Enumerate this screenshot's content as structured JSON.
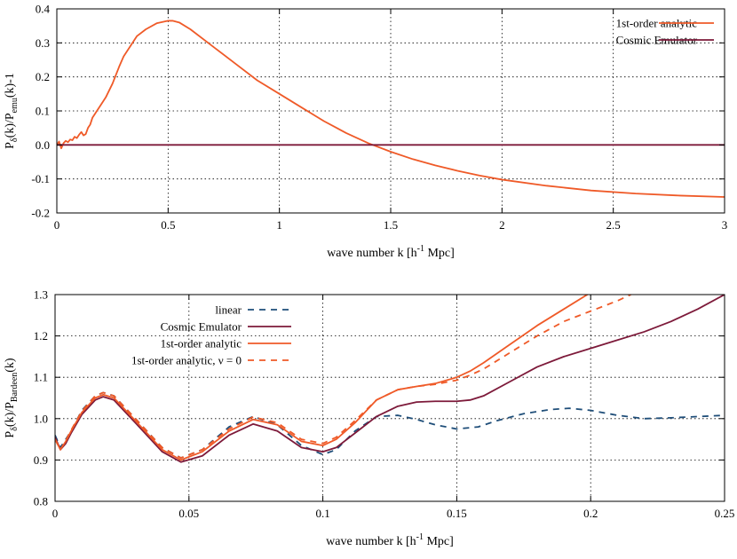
{
  "colors": {
    "analytic": "#ef5a28",
    "emulator": "#7d1a3a",
    "linear": "#1f4e79",
    "nu0": "#ef5a28"
  },
  "chart_data": [
    {
      "type": "line",
      "xlabel": "wave number k [h",
      "xlabel_sup": "-1",
      "xlabel_tail": " Mpc]",
      "ylabel_main": "P",
      "ylabel_sub1": "δ",
      "ylabel_mid": "(k)/P",
      "ylabel_sub2": "emu",
      "ylabel_tail": "(k)-1",
      "xlim": [
        0,
        3
      ],
      "ylim": [
        -0.2,
        0.4
      ],
      "xticks": [
        0,
        0.5,
        1,
        1.5,
        2,
        2.5,
        3
      ],
      "xtick_labels": [
        "0",
        "0.5",
        "1",
        "1.5",
        "2",
        "2.5",
        "3"
      ],
      "yticks": [
        -0.2,
        -0.1,
        0,
        0.1,
        0.2,
        0.3,
        0.4
      ],
      "ytick_labels": [
        "-0.2",
        "-0.1",
        "0.0",
        "0.1",
        "0.2",
        "0.3",
        "0.4"
      ],
      "grid": true,
      "legend": "top-right",
      "series": [
        {
          "name": "1st-order analytic",
          "color_key": "analytic",
          "dash": "solid",
          "x": [
            0.0,
            0.01,
            0.02,
            0.03,
            0.04,
            0.05,
            0.06,
            0.07,
            0.08,
            0.09,
            0.1,
            0.11,
            0.12,
            0.13,
            0.14,
            0.15,
            0.16,
            0.17,
            0.18,
            0.2,
            0.22,
            0.25,
            0.28,
            0.3,
            0.33,
            0.36,
            0.4,
            0.45,
            0.5,
            0.52,
            0.55,
            0.6,
            0.7,
            0.8,
            0.9,
            1.0,
            1.1,
            1.2,
            1.3,
            1.4,
            1.5,
            1.6,
            1.7,
            1.8,
            1.9,
            2.0,
            2.2,
            2.4,
            2.6,
            2.8,
            3.0
          ],
          "y": [
            0.0,
            0.01,
            -0.01,
            0.005,
            0.012,
            0.008,
            0.016,
            0.014,
            0.024,
            0.02,
            0.03,
            0.038,
            0.028,
            0.032,
            0.05,
            0.06,
            0.08,
            0.09,
            0.1,
            0.12,
            0.14,
            0.18,
            0.23,
            0.26,
            0.29,
            0.32,
            0.34,
            0.358,
            0.365,
            0.365,
            0.36,
            0.34,
            0.29,
            0.24,
            0.19,
            0.15,
            0.11,
            0.07,
            0.035,
            0.005,
            -0.02,
            -0.042,
            -0.06,
            -0.076,
            -0.09,
            -0.102,
            -0.12,
            -0.134,
            -0.143,
            -0.149,
            -0.153
          ]
        },
        {
          "name": "Cosmic Emulator",
          "color_key": "emulator",
          "dash": "solid",
          "x": [
            0,
            3
          ],
          "y": [
            0,
            0
          ]
        }
      ]
    },
    {
      "type": "line",
      "xlabel": "wave number k [h",
      "xlabel_sup": "-1",
      "xlabel_tail": " Mpc]",
      "ylabel_main": "P",
      "ylabel_sub1": "δ",
      "ylabel_mid": "(k)/P",
      "ylabel_sub2": "Bardeen",
      "ylabel_tail": "(k)",
      "xlim": [
        0,
        0.25
      ],
      "ylim": [
        0.8,
        1.3
      ],
      "xticks": [
        0,
        0.05,
        0.1,
        0.15,
        0.2,
        0.25
      ],
      "xtick_labels": [
        "0",
        "0.05",
        "0.1",
        "0.15",
        "0.2",
        "0.25"
      ],
      "yticks": [
        0.8,
        0.9,
        1.0,
        1.1,
        1.2,
        1.3
      ],
      "ytick_labels": [
        "0.8",
        "0.9",
        "1.0",
        "1.1",
        "1.2",
        "1.3"
      ],
      "grid": true,
      "legend": "top-left",
      "series": [
        {
          "name": "linear",
          "color_key": "linear",
          "dash": "dashed",
          "x": [
            0.0,
            0.002,
            0.004,
            0.006,
            0.01,
            0.015,
            0.018,
            0.022,
            0.03,
            0.04,
            0.047,
            0.055,
            0.065,
            0.074,
            0.083,
            0.092,
            0.1,
            0.105,
            0.112,
            0.12,
            0.128,
            0.135,
            0.142,
            0.15,
            0.158,
            0.165,
            0.175,
            0.185,
            0.192,
            0.2,
            0.21,
            0.22,
            0.23,
            0.24,
            0.25
          ],
          "y": [
            0.96,
            0.93,
            0.95,
            0.97,
            1.02,
            1.055,
            1.063,
            1.055,
            1.0,
            0.93,
            0.905,
            0.925,
            0.98,
            1.005,
            0.985,
            0.935,
            0.913,
            0.925,
            0.97,
            1.005,
            1.008,
            0.998,
            0.985,
            0.975,
            0.98,
            0.995,
            1.012,
            1.022,
            1.025,
            1.02,
            1.008,
            1.0,
            1.002,
            1.005,
            1.008
          ]
        },
        {
          "name": "Cosmic Emulator",
          "color_key": "emulator",
          "dash": "solid",
          "x": [
            0.0,
            0.002,
            0.004,
            0.006,
            0.01,
            0.015,
            0.018,
            0.022,
            0.03,
            0.04,
            0.047,
            0.055,
            0.065,
            0.074,
            0.083,
            0.092,
            0.1,
            0.105,
            0.112,
            0.12,
            0.128,
            0.135,
            0.142,
            0.15,
            0.155,
            0.16,
            0.17,
            0.18,
            0.19,
            0.2,
            0.21,
            0.22,
            0.23,
            0.24,
            0.25
          ],
          "y": [
            0.955,
            0.925,
            0.94,
            0.965,
            1.01,
            1.045,
            1.053,
            1.045,
            0.99,
            0.92,
            0.895,
            0.91,
            0.96,
            0.987,
            0.97,
            0.93,
            0.92,
            0.93,
            0.965,
            1.005,
            1.03,
            1.04,
            1.042,
            1.042,
            1.045,
            1.055,
            1.09,
            1.125,
            1.15,
            1.17,
            1.19,
            1.21,
            1.235,
            1.265,
            1.3
          ]
        },
        {
          "name": "1st-order analytic",
          "color_key": "analytic",
          "dash": "solid",
          "x": [
            0.0,
            0.002,
            0.004,
            0.006,
            0.01,
            0.015,
            0.018,
            0.022,
            0.03,
            0.04,
            0.047,
            0.055,
            0.065,
            0.074,
            0.083,
            0.092,
            0.1,
            0.105,
            0.112,
            0.12,
            0.128,
            0.135,
            0.142,
            0.15,
            0.155,
            0.16,
            0.17,
            0.18,
            0.19,
            0.2
          ],
          "y": [
            0.95,
            0.925,
            0.945,
            0.97,
            1.015,
            1.05,
            1.058,
            1.05,
            0.995,
            0.925,
            0.9,
            0.92,
            0.97,
            0.998,
            0.985,
            0.945,
            0.935,
            0.95,
            0.99,
            1.045,
            1.07,
            1.078,
            1.085,
            1.1,
            1.115,
            1.135,
            1.18,
            1.225,
            1.265,
            1.305
          ]
        },
        {
          "name": "1st-order analytic, ν = 0",
          "color_key": "nu0",
          "dash": "dashed",
          "x": [
            0.0,
            0.002,
            0.004,
            0.006,
            0.01,
            0.015,
            0.018,
            0.022,
            0.03,
            0.04,
            0.047,
            0.055,
            0.065,
            0.074,
            0.083,
            0.092,
            0.1,
            0.105,
            0.112,
            0.12,
            0.128,
            0.135,
            0.142,
            0.15,
            0.155,
            0.16,
            0.17,
            0.18,
            0.19,
            0.2,
            0.21,
            0.215
          ],
          "y": [
            0.95,
            0.925,
            0.947,
            0.972,
            1.018,
            1.055,
            1.063,
            1.055,
            1.0,
            0.93,
            0.905,
            0.925,
            0.975,
            1.004,
            0.99,
            0.95,
            0.94,
            0.955,
            0.995,
            1.045,
            1.07,
            1.078,
            1.083,
            1.093,
            1.105,
            1.12,
            1.16,
            1.2,
            1.235,
            1.26,
            1.285,
            1.3
          ]
        }
      ]
    }
  ]
}
